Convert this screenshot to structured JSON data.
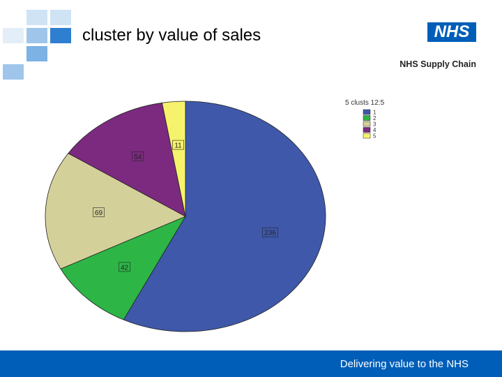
{
  "slide": {
    "title": "cluster by value of sales",
    "brand_logo_text": "NHS",
    "brand_subtitle": "NHS Supply Chain",
    "footer_text": "Delivering value to the NHS"
  },
  "colors": {
    "brand_blue": "#005EB8",
    "decor_square_light": "#cfe3f5",
    "decor_square_mid": "#9fc6ea",
    "decor_square_dark": "#5aa1dc"
  },
  "chart_data": {
    "type": "pie",
    "legend_title": "5 clusts 12:5",
    "legend_position": "top-right",
    "categories": [
      "1",
      "2",
      "3",
      "4",
      "5"
    ],
    "values": [
      236,
      42,
      69,
      54,
      11
    ],
    "colors": [
      "#3f58a9",
      "#2db546",
      "#d4d09a",
      "#7b2a7f",
      "#f7f26c"
    ],
    "start_angle_deg": 0,
    "direction": "clockwise"
  }
}
